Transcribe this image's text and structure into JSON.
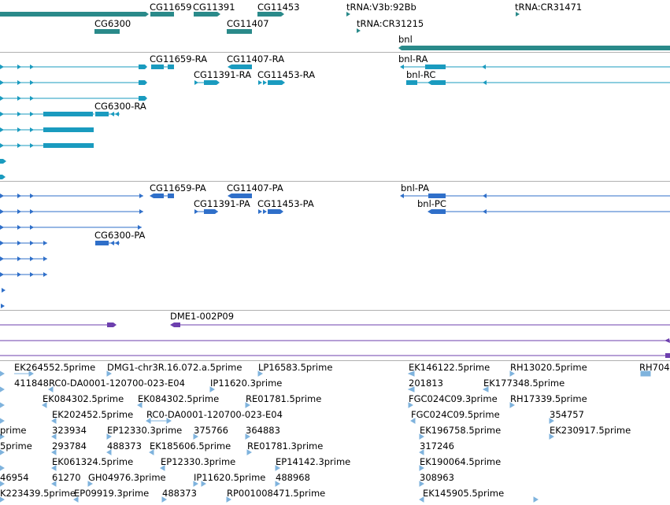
{
  "colors": {
    "gene": "#2a8a8a",
    "transcript": "#1a9bbf",
    "protein": "#2f6fc9",
    "prediction": "#6d3fae",
    "est": "#7fb3dd",
    "divider": "#b0b0b0"
  },
  "gene_track": {
    "labels": [
      {
        "text": "CG11659"
      },
      {
        "text": "CG11391"
      },
      {
        "text": "CG11453"
      },
      {
        "text": "tRNA:V3b:92Bb"
      },
      {
        "text": "tRNA:CR31471"
      },
      {
        "text": "CG6300"
      },
      {
        "text": "CG11407"
      },
      {
        "text": "tRNA:CR31215"
      },
      {
        "text": "bnl"
      }
    ]
  },
  "transcript_track": {
    "labels": [
      {
        "text": "CG11659-RA"
      },
      {
        "text": "CG11407-RA"
      },
      {
        "text": "bnl-RA"
      },
      {
        "text": "CG11391-RA"
      },
      {
        "text": "CG11453-RA"
      },
      {
        "text": "bnl-RC"
      },
      {
        "text": "CG6300-RA"
      }
    ]
  },
  "protein_track": {
    "labels": [
      {
        "text": "CG11659-PA"
      },
      {
        "text": "CG11407-PA"
      },
      {
        "text": "bnl-PA"
      },
      {
        "text": "CG11391-PA"
      },
      {
        "text": "CG11453-PA"
      },
      {
        "text": "bnl-PC"
      },
      {
        "text": "CG6300-PA"
      }
    ]
  },
  "prediction_track": {
    "labels": [
      {
        "text": "DME1-002P09"
      }
    ]
  },
  "est_track": {
    "labels": [
      {
        "text": "EK264552.5prime"
      },
      {
        "text": "DMG1-chr3R.16.072.a.5prime"
      },
      {
        "text": "LP16583.5prime"
      },
      {
        "text": "EK146122.5prime"
      },
      {
        "text": "RH13020.5prime"
      },
      {
        "text": "RH704"
      },
      {
        "text": "411848"
      },
      {
        "text": "RC0-DA0001-120700-023-E04"
      },
      {
        "text": "IP11620.3prime"
      },
      {
        "text": "201813"
      },
      {
        "text": "EK177348.5prime"
      },
      {
        "text": "EK084302.5prime"
      },
      {
        "text": "EK084302.5prime"
      },
      {
        "text": "RE01781.5prime"
      },
      {
        "text": "FGC024C09.3prime"
      },
      {
        "text": "RH17339.5prime"
      },
      {
        "text": "EK202452.5prime"
      },
      {
        "text": "RC0-DA0001-120700-023-E04"
      },
      {
        "text": "FGC024C09.5prime"
      },
      {
        "text": "354757"
      },
      {
        "text": "prime"
      },
      {
        "text": "323934"
      },
      {
        "text": "EP12330.3prime"
      },
      {
        "text": "375766"
      },
      {
        "text": "364883"
      },
      {
        "text": "EK196758.5prime"
      },
      {
        "text": "EK230917.5prime"
      },
      {
        "text": "5prime"
      },
      {
        "text": "293784"
      },
      {
        "text": "488373"
      },
      {
        "text": "EK185606.5prime"
      },
      {
        "text": "RE01781.3prime"
      },
      {
        "text": "317246"
      },
      {
        "text": "EK061324.5prime"
      },
      {
        "text": "EP12330.3prime"
      },
      {
        "text": "EP14142.3prime"
      },
      {
        "text": "EK190064.5prime"
      },
      {
        "text": "46954"
      },
      {
        "text": "61270"
      },
      {
        "text": "GH04976.3prime"
      },
      {
        "text": "IP11620.5prime"
      },
      {
        "text": "488968"
      },
      {
        "text": "308963"
      },
      {
        "text": "K223439.5prime"
      },
      {
        "text": "EP09919.3prime"
      },
      {
        "text": "488373"
      },
      {
        "text": "RP001008471.5prime"
      },
      {
        "text": "EK145905.5prime"
      }
    ]
  }
}
